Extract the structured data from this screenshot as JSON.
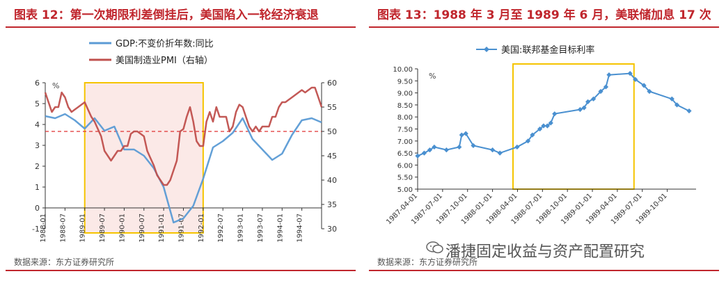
{
  "left_panel": {
    "title": "图表 12：第一次期限利差倒挂后，美国陷入一轮经济衰退",
    "source": "数据来源：东方证券研究所"
  },
  "right_panel": {
    "title": "图表 13：1988 年 3 月至 1989 年 6 月，美联储加息 17 次",
    "source": "数据来源：东方证券研究所"
  },
  "watermark": "潘捷固定收益与资产配置研究",
  "colors": {
    "title_red": "#c0262d",
    "gdp_blue": "#5b9bd5",
    "pmi_red": "#c0504d",
    "threshold_red": "#e03030",
    "highlight_border": "#f5c400",
    "highlight_fill": "#fbe9e7",
    "fed_blue": "#4a90d0"
  },
  "chart_data": [
    {
      "type": "line",
      "unit_label": "%",
      "legend_position": "top",
      "x_tick_labels": [
        "1988-01",
        "1988-07",
        "1989-01",
        "1989-07",
        "1990-01",
        "1990-07",
        "1991-01",
        "1991-07",
        "1992-01",
        "1992-07",
        "1993-01",
        "1993-07",
        "1994-01",
        "1994-07"
      ],
      "y_left": {
        "min": -1,
        "max": 6,
        "ticks": [
          -1,
          0,
          1,
          2,
          3,
          4,
          5,
          6
        ]
      },
      "y_right": {
        "min": 30,
        "max": 60,
        "ticks": [
          30,
          35,
          40,
          45,
          50,
          55,
          60
        ]
      },
      "threshold_right": 50,
      "highlight_range": [
        "1989-01",
        "1992-01"
      ],
      "series": [
        {
          "name": "GDP:不变价折年数:同比",
          "axis": "left",
          "color_key": "gdp_blue",
          "points": [
            [
              "1988-01",
              4.4
            ],
            [
              "1988-04",
              4.3
            ],
            [
              "1988-07",
              4.5
            ],
            [
              "1988-10",
              4.2
            ],
            [
              "1989-01",
              3.8
            ],
            [
              "1989-04",
              4.3
            ],
            [
              "1989-07",
              3.7
            ],
            [
              "1989-10",
              3.9
            ],
            [
              "1990-01",
              2.8
            ],
            [
              "1990-04",
              2.8
            ],
            [
              "1990-07",
              2.5
            ],
            [
              "1990-10",
              1.9
            ],
            [
              "1991-01",
              1.0
            ],
            [
              "1991-04",
              -0.7
            ],
            [
              "1991-07",
              -0.5
            ],
            [
              "1991-10",
              0.1
            ],
            [
              "1992-01",
              1.4
            ],
            [
              "1992-04",
              2.9
            ],
            [
              "1992-07",
              3.2
            ],
            [
              "1992-10",
              3.6
            ],
            [
              "1993-01",
              4.3
            ],
            [
              "1993-04",
              3.3
            ],
            [
              "1993-07",
              2.8
            ],
            [
              "1993-10",
              2.3
            ],
            [
              "1994-01",
              2.6
            ],
            [
              "1994-04",
              3.5
            ],
            [
              "1994-07",
              4.2
            ],
            [
              "1994-10",
              4.3
            ],
            [
              "1995-01",
              4.1
            ]
          ]
        },
        {
          "name": "美国制造业PMI（右轴）",
          "axis": "right",
          "color_key": "pmi_red",
          "points": [
            [
              "1988-01",
              58
            ],
            [
              "1988-02",
              56
            ],
            [
              "1988-03",
              54
            ],
            [
              "1988-04",
              55
            ],
            [
              "1988-05",
              55
            ],
            [
              "1988-06",
              58
            ],
            [
              "1988-07",
              57
            ],
            [
              "1988-08",
              55
            ],
            [
              "1988-09",
              54
            ],
            [
              "1988-10",
              54.5
            ],
            [
              "1988-11",
              55
            ],
            [
              "1988-12",
              55.5
            ],
            [
              "1989-01",
              56
            ],
            [
              "1989-02",
              54.5
            ],
            [
              "1989-03",
              53
            ],
            [
              "1989-04",
              52
            ],
            [
              "1989-05",
              50.5
            ],
            [
              "1989-06",
              49
            ],
            [
              "1989-07",
              46
            ],
            [
              "1989-08",
              45
            ],
            [
              "1989-09",
              44
            ],
            [
              "1989-10",
              45
            ],
            [
              "1989-11",
              46
            ],
            [
              "1989-12",
              46
            ],
            [
              "1990-01",
              47
            ],
            [
              "1990-02",
              47
            ],
            [
              "1990-03",
              49.5
            ],
            [
              "1990-04",
              50
            ],
            [
              "1990-05",
              50
            ],
            [
              "1990-06",
              49.5
            ],
            [
              "1990-07",
              49
            ],
            [
              "1990-08",
              46
            ],
            [
              "1990-09",
              44.5
            ],
            [
              "1990-10",
              43
            ],
            [
              "1990-11",
              41
            ],
            [
              "1990-12",
              40
            ],
            [
              "1991-01",
              39
            ],
            [
              "1991-02",
              39
            ],
            [
              "1991-03",
              40
            ],
            [
              "1991-04",
              42
            ],
            [
              "1991-05",
              44
            ],
            [
              "1991-06",
              50
            ],
            [
              "1991-07",
              50.5
            ],
            [
              "1991-08",
              53
            ],
            [
              "1991-09",
              55
            ],
            [
              "1991-10",
              52
            ],
            [
              "1991-11",
              48
            ],
            [
              "1991-12",
              47
            ],
            [
              "1992-01",
              47
            ],
            [
              "1992-02",
              52
            ],
            [
              "1992-03",
              54
            ],
            [
              "1992-04",
              52
            ],
            [
              "1992-05",
              55
            ],
            [
              "1992-06",
              53
            ],
            [
              "1992-07",
              53
            ],
            [
              "1992-08",
              53
            ],
            [
              "1992-09",
              50
            ],
            [
              "1992-10",
              51
            ],
            [
              "1992-11",
              54
            ],
            [
              "1992-12",
              55.5
            ],
            [
              "1993-01",
              55
            ],
            [
              "1993-02",
              53
            ],
            [
              "1993-03",
              51
            ],
            [
              "1993-04",
              50
            ],
            [
              "1993-05",
              51
            ],
            [
              "1993-06",
              50
            ],
            [
              "1993-07",
              51
            ],
            [
              "1993-08",
              51
            ],
            [
              "1993-09",
              51
            ],
            [
              "1993-10",
              53
            ],
            [
              "1993-11",
              53
            ],
            [
              "1993-12",
              55
            ],
            [
              "1994-01",
              56
            ],
            [
              "1994-02",
              56
            ],
            [
              "1994-03",
              56.5
            ],
            [
              "1994-04",
              57
            ],
            [
              "1994-05",
              57.5
            ],
            [
              "1994-06",
              58
            ],
            [
              "1994-07",
              58.5
            ],
            [
              "1994-08",
              58
            ],
            [
              "1994-09",
              58.5
            ],
            [
              "1994-10",
              59
            ],
            [
              "1994-11",
              59
            ],
            [
              "1994-12",
              57
            ],
            [
              "1995-01",
              55
            ]
          ]
        }
      ]
    },
    {
      "type": "line",
      "unit_label": "%",
      "legend_position": "top",
      "x_tick_labels": [
        "1987-04-01",
        "1987-07-01",
        "1987-10-01",
        "1988-01-01",
        "1988-04-01",
        "1988-07-01",
        "1988-10-01",
        "1989-01-01",
        "1989-04-01",
        "1989-07-01",
        "1989-10-01"
      ],
      "y": {
        "min": 5.0,
        "max": 10.0,
        "ticks": [
          "5.00",
          "5.50",
          "6.00",
          "6.50",
          "7.00",
          "7.50",
          "8.00",
          "8.50",
          "9.00",
          "9.50",
          "10.00"
        ]
      },
      "highlight_range": [
        "1988-03-15",
        "1989-06-01"
      ],
      "series": [
        {
          "name": "美国:联邦基金目标利率",
          "color_key": "fed_blue",
          "points": [
            [
              "1987-04-01",
              6.38
            ],
            [
              "1987-04-25",
              6.5
            ],
            [
              "1987-05-15",
              6.63
            ],
            [
              "1987-06-01",
              6.75
            ],
            [
              "1987-07-15",
              6.63
            ],
            [
              "1987-09-01",
              6.75
            ],
            [
              "1987-09-10",
              7.25
            ],
            [
              "1987-09-25",
              7.31
            ],
            [
              "1987-10-22",
              6.81
            ],
            [
              "1988-01-01",
              6.63
            ],
            [
              "1988-01-28",
              6.5
            ],
            [
              "1988-03-30",
              6.75
            ],
            [
              "1988-05-09",
              7.0
            ],
            [
              "1988-05-25",
              7.25
            ],
            [
              "1988-06-22",
              7.5
            ],
            [
              "1988-07-05",
              7.63
            ],
            [
              "1988-07-19",
              7.63
            ],
            [
              "1988-08-01",
              7.75
            ],
            [
              "1988-08-15",
              8.13
            ],
            [
              "1988-11-17",
              8.31
            ],
            [
              "1988-12-01",
              8.38
            ],
            [
              "1988-12-15",
              8.63
            ],
            [
              "1989-01-05",
              8.75
            ],
            [
              "1989-02-01",
              9.06
            ],
            [
              "1989-02-20",
              9.25
            ],
            [
              "1989-03-01",
              9.75
            ],
            [
              "1989-05-17",
              9.81
            ],
            [
              "1989-06-06",
              9.56
            ],
            [
              "1989-07-07",
              9.31
            ],
            [
              "1989-07-27",
              9.06
            ],
            [
              "1989-10-18",
              8.75
            ],
            [
              "1989-11-06",
              8.5
            ],
            [
              "1989-12-20",
              8.25
            ]
          ]
        }
      ]
    }
  ]
}
